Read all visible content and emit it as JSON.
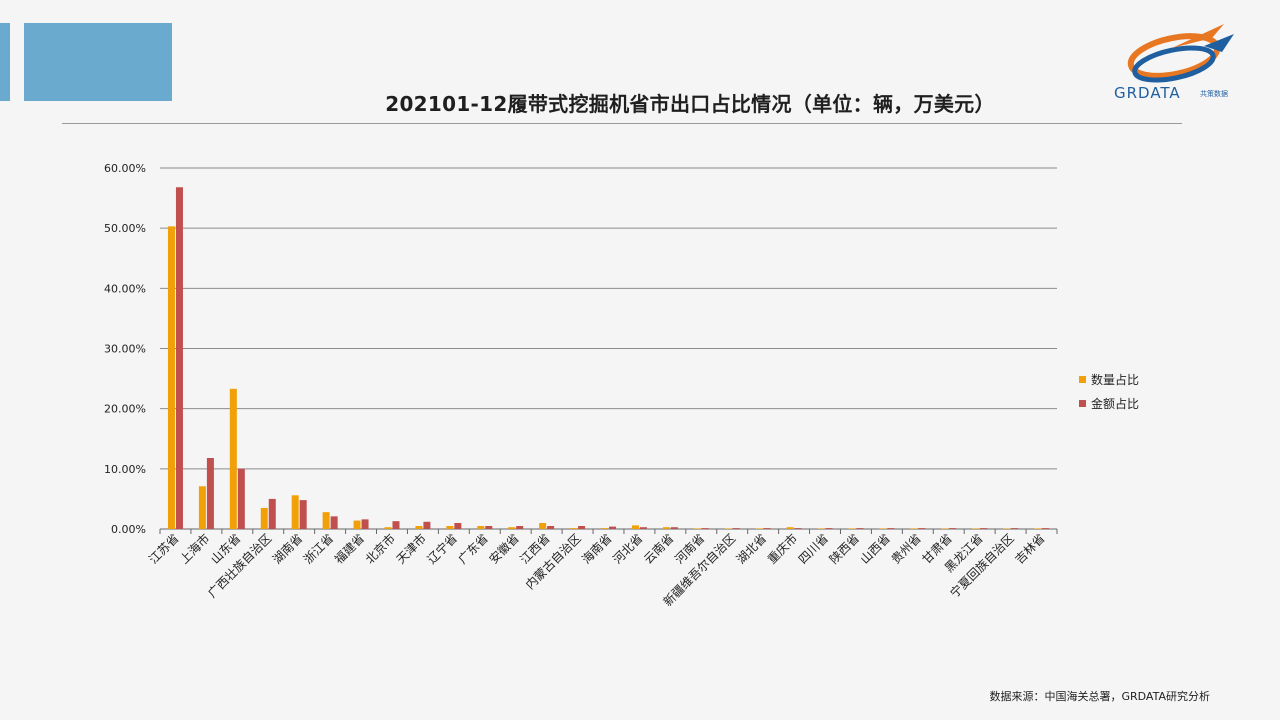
{
  "header": {
    "title": "202101-12履带式挖掘机省市出口占比情况（单位：辆，万美元）",
    "logo_text": "GRDATA",
    "logo_sub": "共策数据"
  },
  "footer": {
    "source": "数据来源：中国海关总署，GRDATA研究分析"
  },
  "colors": {
    "accent": "#6aaacf",
    "series_quantity": "#f2a007",
    "series_amount": "#c0504d"
  },
  "chart_data": {
    "type": "bar",
    "categories": [
      "江苏省",
      "上海市",
      "山东省",
      "广西壮族自治区",
      "湖南省",
      "浙江省",
      "福建省",
      "北京市",
      "天津市",
      "辽宁省",
      "广东省",
      "安徽省",
      "江西省",
      "内蒙古自治区",
      "海南省",
      "河北省",
      "云南省",
      "河南省",
      "新疆维吾尔自治区",
      "湖北省",
      "重庆市",
      "四川省",
      "陕西省",
      "山西省",
      "贵州省",
      "甘肃省",
      "黑龙江省",
      "宁夏回族自治区",
      "吉林省"
    ],
    "series": [
      {
        "name": "数量占比",
        "color": "#f2a007",
        "values": [
          50.3,
          7.1,
          23.3,
          3.5,
          5.6,
          2.8,
          1.4,
          0.3,
          0.5,
          0.5,
          0.5,
          0.3,
          1.0,
          0.15,
          0.15,
          0.6,
          0.3,
          0.1,
          0.1,
          0.1,
          0.3,
          0.1,
          0.1,
          0.1,
          0.1,
          0.1,
          0.1,
          0.1,
          0.1
        ]
      },
      {
        "name": "金额占比",
        "color": "#c0504d",
        "values": [
          56.8,
          11.8,
          10.0,
          5.0,
          4.8,
          2.1,
          1.6,
          1.3,
          1.2,
          1.0,
          0.5,
          0.5,
          0.5,
          0.5,
          0.4,
          0.3,
          0.3,
          0.15,
          0.15,
          0.15,
          0.15,
          0.15,
          0.15,
          0.15,
          0.15,
          0.15,
          0.15,
          0.15,
          0.15
        ]
      }
    ],
    "ylim": [
      0,
      60
    ],
    "yticks": [
      "0.00%",
      "10.00%",
      "20.00%",
      "30.00%",
      "40.00%",
      "50.00%",
      "60.00%"
    ],
    "grid": true,
    "legend_position": "right"
  }
}
